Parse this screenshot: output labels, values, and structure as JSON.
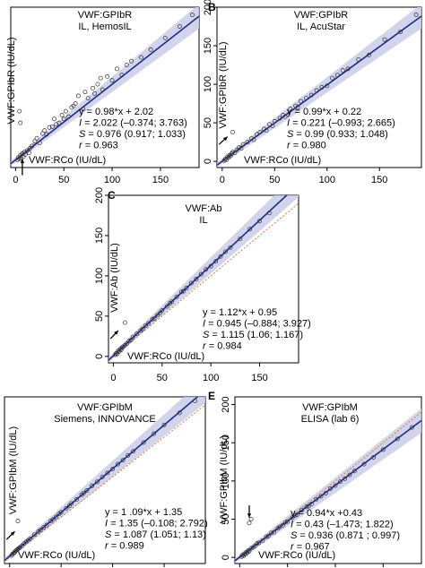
{
  "chart_data": [
    {
      "type": "scatter",
      "panel": "",
      "title": "VWF:GPIbR",
      "subtitle": "IL, HemosIL",
      "xlabel": "VWF:RCo (IU/dL)",
      "ylabel": "VWF:GPIbR (IU/dL)",
      "xlim": [
        -5,
        190
      ],
      "ylim": [
        -8,
        200
      ],
      "xticks": [
        0,
        50,
        100,
        150
      ],
      "yticks": [],
      "identity_line": false,
      "annotation_arrow": {
        "from": [
          7,
          -18
        ],
        "to": [
          7,
          3
        ]
      },
      "stats": {
        "equation": "y = 0.98*x + 2.02",
        "I_label": "I",
        "I_value": " = 2.022 (–0.374; 3.763)",
        "S_label": "S",
        "S_value": " = 0.976 (0.917; 1.033)",
        "r_label": "r",
        "r_value": " = 0.963"
      },
      "fit": {
        "slope": 0.98,
        "intercept": 2.02
      },
      "points": [
        [
          2,
          2
        ],
        [
          3,
          5
        ],
        [
          4,
          3
        ],
        [
          5,
          8
        ],
        [
          6,
          4
        ],
        [
          7,
          10
        ],
        [
          8,
          6
        ],
        [
          9,
          12
        ],
        [
          10,
          9
        ],
        [
          12,
          14
        ],
        [
          14,
          11
        ],
        [
          15,
          17
        ],
        [
          17,
          20
        ],
        [
          20,
          26
        ],
        [
          22,
          30
        ],
        [
          25,
          24
        ],
        [
          28,
          36
        ],
        [
          30,
          40
        ],
        [
          32,
          35
        ],
        [
          35,
          44
        ],
        [
          38,
          45
        ],
        [
          40,
          55
        ],
        [
          42,
          48
        ],
        [
          45,
          50
        ],
        [
          48,
          60
        ],
        [
          50,
          55
        ],
        [
          52,
          65
        ],
        [
          55,
          58
        ],
        [
          58,
          70
        ],
        [
          60,
          72
        ],
        [
          62,
          75
        ],
        [
          65,
          85
        ],
        [
          70,
          68
        ],
        [
          72,
          90
        ],
        [
          75,
          82
        ],
        [
          80,
          95
        ],
        [
          82,
          88
        ],
        [
          85,
          100
        ],
        [
          88,
          108
        ],
        [
          90,
          93
        ],
        [
          95,
          110
        ],
        [
          100,
          105
        ],
        [
          105,
          120
        ],
        [
          110,
          112
        ],
        [
          115,
          125
        ],
        [
          120,
          130
        ],
        [
          130,
          135
        ],
        [
          140,
          145
        ],
        [
          155,
          160
        ],
        [
          170,
          175
        ],
        [
          183,
          190
        ],
        [
          4,
          65
        ],
        [
          5,
          50
        ]
      ]
    },
    {
      "type": "scatter",
      "panel": "B",
      "title": "VWF:GPIbR",
      "subtitle": "IL, AcuStar",
      "xlabel": "VWF:RCo (IU/dL)",
      "ylabel": "VWF:GPIbR (IU/dL)",
      "xlim": [
        -5,
        190
      ],
      "ylim": [
        -8,
        200
      ],
      "xticks": [
        0,
        50,
        100,
        150
      ],
      "yticks": [
        0,
        50,
        100,
        150,
        200
      ],
      "identity_line": false,
      "annotation_arrow": {
        "from": [
          -3,
          22
        ],
        "to": [
          5,
          32
        ]
      },
      "stats": {
        "equation": "y = 0.99*x + 0.22",
        "I_label": "I",
        "I_value": " = 0.221 (–0.993; 2.665)",
        "S_label": "S",
        "S_value": " = 0.99 (0.933; 1.048)",
        "r_label": "r",
        "r_value": " = 0.980"
      },
      "fit": {
        "slope": 0.99,
        "intercept": 0.22
      },
      "points": [
        [
          2,
          1
        ],
        [
          3,
          3
        ],
        [
          4,
          2
        ],
        [
          5,
          6
        ],
        [
          6,
          5
        ],
        [
          7,
          8
        ],
        [
          8,
          7
        ],
        [
          9,
          10
        ],
        [
          10,
          12
        ],
        [
          12,
          11
        ],
        [
          14,
          15
        ],
        [
          16,
          18
        ],
        [
          18,
          17
        ],
        [
          20,
          22
        ],
        [
          24,
          25
        ],
        [
          28,
          30
        ],
        [
          30,
          28
        ],
        [
          33,
          35
        ],
        [
          36,
          38
        ],
        [
          40,
          42
        ],
        [
          42,
          40
        ],
        [
          45,
          48
        ],
        [
          48,
          46
        ],
        [
          50,
          52
        ],
        [
          55,
          56
        ],
        [
          58,
          60
        ],
        [
          60,
          58
        ],
        [
          65,
          68
        ],
        [
          70,
          72
        ],
        [
          72,
          70
        ],
        [
          75,
          78
        ],
        [
          80,
          82
        ],
        [
          85,
          86
        ],
        [
          90,
          92
        ],
        [
          95,
          96
        ],
        [
          100,
          98
        ],
        [
          105,
          108
        ],
        [
          110,
          112
        ],
        [
          115,
          118
        ],
        [
          120,
          120
        ],
        [
          130,
          132
        ],
        [
          140,
          138
        ],
        [
          155,
          158
        ],
        [
          170,
          168
        ],
        [
          185,
          190
        ],
        [
          10,
          38
        ]
      ]
    },
    {
      "type": "scatter",
      "panel": "C",
      "title": "VWF:Ab",
      "subtitle": "IL",
      "xlabel": "VWF:RCo (IU/dL)",
      "ylabel": "VWF:Ab (IU/dL)",
      "xlim": [
        -5,
        190
      ],
      "ylim": [
        -8,
        200
      ],
      "xticks": [
        0,
        50,
        100,
        150
      ],
      "yticks": [
        0,
        50,
        100,
        150,
        200
      ],
      "identity_line": true,
      "annotation_arrow": {
        "from": [
          -3,
          22
        ],
        "to": [
          5,
          32
        ]
      },
      "stats": {
        "equation": "y = 1.12*x + 0.95",
        "I_label": "I",
        "I_value": " = 0.945 (–0.884; 3.927)",
        "S_label": "S",
        "S_value": " = 1.115 (1.06; 1.167)",
        "r_label": "r",
        "r_value": " = 0.984"
      },
      "fit": {
        "slope": 1.12,
        "intercept": 0.95
      },
      "points": [
        [
          2,
          2
        ],
        [
          3,
          4
        ],
        [
          4,
          3
        ],
        [
          5,
          7
        ],
        [
          6,
          6
        ],
        [
          7,
          9
        ],
        [
          8,
          8
        ],
        [
          9,
          11
        ],
        [
          10,
          12
        ],
        [
          12,
          14
        ],
        [
          14,
          16
        ],
        [
          16,
          19
        ],
        [
          18,
          20
        ],
        [
          20,
          24
        ],
        [
          24,
          28
        ],
        [
          28,
          32
        ],
        [
          30,
          34
        ],
        [
          33,
          38
        ],
        [
          36,
          41
        ],
        [
          40,
          46
        ],
        [
          42,
          47
        ],
        [
          45,
          51
        ],
        [
          48,
          54
        ],
        [
          50,
          57
        ],
        [
          55,
          62
        ],
        [
          58,
          66
        ],
        [
          60,
          68
        ],
        [
          65,
          74
        ],
        [
          70,
          80
        ],
        [
          72,
          81
        ],
        [
          75,
          85
        ],
        [
          80,
          91
        ],
        [
          85,
          96
        ],
        [
          90,
          102
        ],
        [
          95,
          108
        ],
        [
          100,
          112
        ],
        [
          105,
          118
        ],
        [
          110,
          124
        ],
        [
          115,
          130
        ],
        [
          120,
          135
        ],
        [
          130,
          146
        ],
        [
          140,
          158
        ],
        [
          150,
          168
        ],
        [
          160,
          178
        ],
        [
          12,
          42
        ]
      ]
    },
    {
      "type": "scatter",
      "panel": "",
      "title": "VWF:GPIbM",
      "subtitle": "Siemens, INNOVANCE",
      "xlabel": "VWF:RCo (IU/dL)",
      "ylabel": "VWF:GPIbM (IU/dL)",
      "xlim": [
        -5,
        190
      ],
      "ylim": [
        -8,
        200
      ],
      "xticks": [],
      "yticks": [],
      "identity_line": true,
      "annotation_arrow": {
        "from": [
          -3,
          22
        ],
        "to": [
          5,
          32
        ]
      },
      "stats": {
        "equation": "y = 1 .09*x + 1.35",
        "I_label": "I",
        "I_value": " = 1.35 (–0.108; 2.792)",
        "S_label": "S",
        "S_value": " = 1.087 (1.051; 1.13)",
        "r_label": "r",
        "r_value": " = 0.989"
      },
      "fit": {
        "slope": 1.09,
        "intercept": 1.35
      },
      "points": [
        [
          2,
          2
        ],
        [
          3,
          4
        ],
        [
          4,
          5
        ],
        [
          5,
          6
        ],
        [
          6,
          8
        ],
        [
          7,
          9
        ],
        [
          8,
          10
        ],
        [
          9,
          11
        ],
        [
          10,
          12
        ],
        [
          12,
          14
        ],
        [
          14,
          17
        ],
        [
          16,
          19
        ],
        [
          18,
          21
        ],
        [
          20,
          23
        ],
        [
          24,
          28
        ],
        [
          28,
          32
        ],
        [
          30,
          34
        ],
        [
          33,
          37
        ],
        [
          36,
          40
        ],
        [
          40,
          45
        ],
        [
          42,
          47
        ],
        [
          45,
          50
        ],
        [
          48,
          54
        ],
        [
          50,
          56
        ],
        [
          55,
          61
        ],
        [
          58,
          64
        ],
        [
          60,
          67
        ],
        [
          65,
          72
        ],
        [
          70,
          78
        ],
        [
          72,
          80
        ],
        [
          75,
          83
        ],
        [
          80,
          89
        ],
        [
          85,
          94
        ],
        [
          90,
          100
        ],
        [
          95,
          105
        ],
        [
          100,
          110
        ],
        [
          105,
          116
        ],
        [
          110,
          121
        ],
        [
          115,
          127
        ],
        [
          120,
          132
        ],
        [
          130,
          143
        ],
        [
          140,
          154
        ],
        [
          150,
          165
        ],
        [
          165,
          180
        ],
        [
          180,
          195
        ],
        [
          8,
          45
        ]
      ]
    },
    {
      "type": "scatter",
      "panel": "E",
      "title": "VWF:GPIbM",
      "subtitle": "ELISA (lab 6)",
      "xlabel": "VWF:RCo (IU/dL)",
      "ylabel": "VWF:GPIbM (IU/dL)",
      "xlim": [
        -5,
        190
      ],
      "ylim": [
        -8,
        210
      ],
      "xticks": [],
      "yticks": [
        0,
        50,
        100,
        150,
        200
      ],
      "identity_line": true,
      "annotation_arrow": {
        "from": [
          10,
          68
        ],
        "to": [
          10,
          52
        ]
      },
      "stats": {
        "equation": "y = 0.94*x +0.43",
        "I_label": "I",
        "I_value": " = 0.43 (–1.473; 1.822)",
        "S_label": "S",
        "S_value": " = 0.936 (0.871 ; 0.997)",
        "r_label": "r",
        "r_value": " = 0.967"
      },
      "fit": {
        "slope": 0.94,
        "intercept": 0.43
      },
      "points": [
        [
          2,
          1
        ],
        [
          3,
          3
        ],
        [
          4,
          2
        ],
        [
          5,
          5
        ],
        [
          6,
          4
        ],
        [
          7,
          7
        ],
        [
          8,
          6
        ],
        [
          9,
          9
        ],
        [
          10,
          8
        ],
        [
          12,
          12
        ],
        [
          14,
          13
        ],
        [
          16,
          15
        ],
        [
          18,
          18
        ],
        [
          20,
          19
        ],
        [
          24,
          22
        ],
        [
          28,
          27
        ],
        [
          30,
          28
        ],
        [
          33,
          32
        ],
        [
          36,
          33
        ],
        [
          40,
          38
        ],
        [
          42,
          40
        ],
        [
          45,
          42
        ],
        [
          48,
          46
        ],
        [
          50,
          47
        ],
        [
          55,
          52
        ],
        [
          58,
          55
        ],
        [
          60,
          56
        ],
        [
          65,
          62
        ],
        [
          70,
          66
        ],
        [
          72,
          67
        ],
        [
          75,
          70
        ],
        [
          80,
          76
        ],
        [
          85,
          80
        ],
        [
          90,
          84
        ],
        [
          95,
          90
        ],
        [
          100,
          94
        ],
        [
          105,
          99
        ],
        [
          110,
          103
        ],
        [
          115,
          108
        ],
        [
          120,
          113
        ],
        [
          130,
          122
        ],
        [
          140,
          131
        ],
        [
          150,
          141
        ],
        [
          165,
          155
        ],
        [
          180,
          170
        ],
        [
          10,
          45
        ],
        [
          12,
          50
        ]
      ]
    }
  ]
}
